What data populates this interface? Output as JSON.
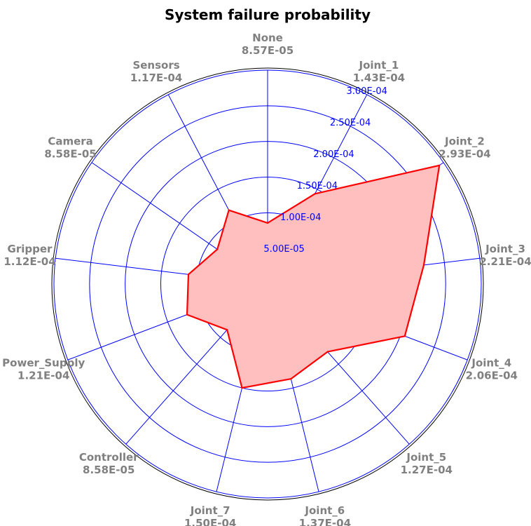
{
  "chart_data": {
    "type": "radar",
    "title": "System failure probability",
    "categories": [
      "None",
      "Joint_1",
      "Joint_2",
      "Joint_3",
      "Joint_4",
      "Joint_5",
      "Joint_6",
      "Joint_7",
      "Controller",
      "Power_Supply",
      "Gripper",
      "Camera",
      "Sensors"
    ],
    "category_value_labels": [
      "8.57E-05",
      "1.43E-04",
      "2.93E-04",
      "2.21E-04",
      "2.06E-04",
      "1.27E-04",
      "1.37E-04",
      "1.50E-04",
      "8.58E-05",
      "1.21E-04",
      "1.12E-04",
      "8.58E-05",
      "1.17E-04"
    ],
    "values": [
      8.57e-05,
      0.000143,
      0.000293,
      0.000221,
      0.000206,
      0.000127,
      0.000137,
      0.00015,
      8.58e-05,
      0.000121,
      0.000112,
      8.58e-05,
      0.000117
    ],
    "rlim": [
      0,
      0.0003
    ],
    "r_ticks": [
      5e-05,
      0.0001,
      0.00015,
      0.0002,
      0.00025,
      0.0003
    ],
    "r_tick_labels": [
      "5.00E-05",
      "1.00E-04",
      "1.50E-04",
      "2.00E-04",
      "2.50E-04",
      "3.00E-04"
    ],
    "grid": true,
    "colors": {
      "line": "#ff0000",
      "fill": "#ffbfbf",
      "grid": "#0000ff",
      "category_label": "#808080",
      "tick_label": "#0000ff",
      "frame": "#000000"
    }
  }
}
